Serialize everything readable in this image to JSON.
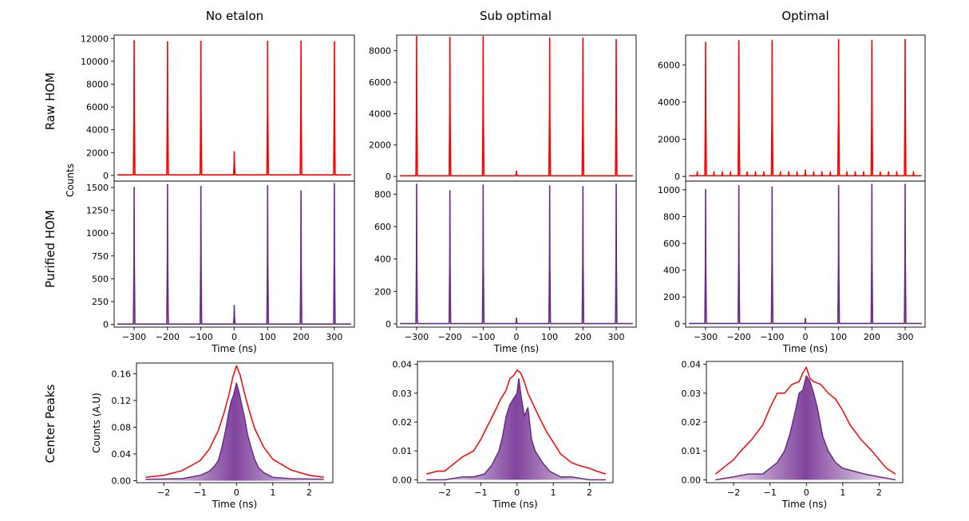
{
  "figure": {
    "column_titles": [
      "No etalon",
      "Sub optimal",
      "Optimal"
    ],
    "row_titles": [
      "Raw HOM",
      "Purified HOM",
      "Center Peaks"
    ],
    "shared_ylabel_top": "Counts",
    "ylabel_center": "Counts (A.U)",
    "xlabel": "Time (ns)"
  },
  "colors": {
    "raw": "#ff0000",
    "purified": "#6a2b86",
    "fill": "#8a4fa6",
    "axis": "#000000"
  },
  "chart_data": [
    {
      "id": "raw-no-etalon",
      "type": "line",
      "title": "No etalon",
      "row": "Raw HOM",
      "series_name": "raw",
      "color": "#ff0000",
      "xlim": [
        -360,
        360
      ],
      "ylim": [
        -500,
        12300
      ],
      "yticks": [
        0,
        2000,
        4000,
        6000,
        8000,
        10000,
        12000
      ],
      "yticklabels": [
        "0",
        "2000",
        "4000",
        "6000",
        "8000",
        "10000",
        "12000"
      ],
      "xticks": [],
      "baseline": 50,
      "sidepeaks": 0,
      "peak_width": 1.4,
      "peaks": [
        {
          "x": -300,
          "y": 11800
        },
        {
          "x": -200,
          "y": 11700
        },
        {
          "x": -100,
          "y": 11750
        },
        {
          "x": 0,
          "y": 2050
        },
        {
          "x": 100,
          "y": 11750
        },
        {
          "x": 200,
          "y": 11750
        },
        {
          "x": 300,
          "y": 11700
        }
      ]
    },
    {
      "id": "raw-sub-optimal",
      "type": "line",
      "title": "Sub optimal",
      "row": "Raw HOM",
      "series_name": "raw",
      "color": "#ff0000",
      "xlim": [
        -360,
        360
      ],
      "ylim": [
        -300,
        9000
      ],
      "yticks": [
        0,
        2000,
        4000,
        6000,
        8000
      ],
      "yticklabels": [
        "0",
        "2000",
        "4000",
        "6000",
        "8000"
      ],
      "xticks": [],
      "baseline": 40,
      "sidepeaks": 0,
      "peak_width": 1.4,
      "peaks": [
        {
          "x": -300,
          "y": 8900
        },
        {
          "x": -200,
          "y": 8850
        },
        {
          "x": -100,
          "y": 8900
        },
        {
          "x": 0,
          "y": 330
        },
        {
          "x": 100,
          "y": 8800
        },
        {
          "x": 200,
          "y": 8800
        },
        {
          "x": 300,
          "y": 8700
        }
      ]
    },
    {
      "id": "raw-optimal",
      "type": "line",
      "title": "Optimal",
      "row": "Raw HOM",
      "series_name": "raw",
      "color": "#ff0000",
      "xlim": [
        -360,
        360
      ],
      "ylim": [
        -250,
        7600
      ],
      "yticks": [
        0,
        2000,
        4000,
        6000
      ],
      "yticklabels": [
        "0",
        "2000",
        "4000",
        "6000"
      ],
      "xticks": [],
      "baseline": 40,
      "sidepeaks": 250,
      "peak_width": 1.4,
      "peaks": [
        {
          "x": -300,
          "y": 7200
        },
        {
          "x": -200,
          "y": 7300
        },
        {
          "x": -100,
          "y": 7300
        },
        {
          "x": 0,
          "y": 330
        },
        {
          "x": 100,
          "y": 7350
        },
        {
          "x": 200,
          "y": 7300
        },
        {
          "x": 300,
          "y": 7350
        }
      ]
    },
    {
      "id": "purified-no-etalon",
      "type": "line",
      "title": "No etalon",
      "row": "Purified HOM",
      "series_name": "purified",
      "color": "#6a2b86",
      "xlim": [
        -360,
        360
      ],
      "ylim": [
        -30,
        1570
      ],
      "yticks": [
        0,
        250,
        500,
        750,
        1000,
        1250,
        1500
      ],
      "yticklabels": [
        "0",
        "250",
        "500",
        "750",
        "1000",
        "1250",
        "1500"
      ],
      "xticks": [
        -300,
        -200,
        -100,
        0,
        100,
        200,
        300
      ],
      "xticklabels": [
        "−300",
        "−200",
        "−100",
        "0",
        "100",
        "200",
        "300"
      ],
      "xlabel": "Time (ns)",
      "baseline": 3,
      "sidepeaks": 0,
      "peak_width": 1.4,
      "peaks": [
        {
          "x": -300,
          "y": 1500
        },
        {
          "x": -200,
          "y": 1530
        },
        {
          "x": -100,
          "y": 1510
        },
        {
          "x": 0,
          "y": 205
        },
        {
          "x": 100,
          "y": 1520
        },
        {
          "x": 200,
          "y": 1460
        },
        {
          "x": 300,
          "y": 1540
        }
      ]
    },
    {
      "id": "purified-sub-optimal",
      "type": "line",
      "title": "Sub optimal",
      "row": "Purified HOM",
      "series_name": "purified",
      "color": "#6a2b86",
      "xlim": [
        -360,
        360
      ],
      "ylim": [
        -20,
        880
      ],
      "yticks": [
        0,
        200,
        400,
        600,
        800
      ],
      "yticklabels": [
        "0",
        "200",
        "400",
        "600",
        "800"
      ],
      "xticks": [
        -300,
        -200,
        -100,
        0,
        100,
        200,
        300
      ],
      "xticklabels": [
        "−300",
        "−200",
        "−100",
        "0",
        "100",
        "200",
        "300"
      ],
      "xlabel": "Time (ns)",
      "baseline": 2,
      "sidepeaks": 0,
      "peak_width": 1.4,
      "peaks": [
        {
          "x": -300,
          "y": 860
        },
        {
          "x": -200,
          "y": 820
        },
        {
          "x": -100,
          "y": 855
        },
        {
          "x": 0,
          "y": 35
        },
        {
          "x": 100,
          "y": 850
        },
        {
          "x": 200,
          "y": 845
        },
        {
          "x": 300,
          "y": 860
        }
      ]
    },
    {
      "id": "purified-optimal",
      "type": "line",
      "title": "Optimal",
      "row": "Purified HOM",
      "series_name": "purified",
      "color": "#6a2b86",
      "xlim": [
        -360,
        360
      ],
      "ylim": [
        -25,
        1065
      ],
      "yticks": [
        0,
        200,
        400,
        600,
        800,
        1000
      ],
      "yticklabels": [
        "0",
        "200",
        "400",
        "600",
        "800",
        "1000"
      ],
      "xticks": [
        -300,
        -200,
        -100,
        0,
        100,
        200,
        300
      ],
      "xticklabels": [
        "−300",
        "−200",
        "−100",
        "0",
        "100",
        "200",
        "300"
      ],
      "xlabel": "Time (ns)",
      "baseline": 2,
      "sidepeaks": 0,
      "peak_width": 1.4,
      "peaks": [
        {
          "x": -300,
          "y": 1000
        },
        {
          "x": -200,
          "y": 1030
        },
        {
          "x": -100,
          "y": 1020
        },
        {
          "x": 0,
          "y": 38
        },
        {
          "x": 100,
          "y": 1030
        },
        {
          "x": 200,
          "y": 1040
        },
        {
          "x": 300,
          "y": 1040
        }
      ]
    },
    {
      "id": "center-no-etalon",
      "type": "area",
      "title": "No etalon",
      "row": "Center Peaks",
      "xlim": [
        -2.75,
        2.65
      ],
      "ylim": [
        -0.003,
        0.176
      ],
      "yticks": [
        0.0,
        0.04,
        0.08,
        0.12,
        0.16
      ],
      "yticklabels": [
        "0.00",
        "0.04",
        "0.08",
        "0.12",
        "0.16"
      ],
      "xticks": [
        -2,
        -1,
        0,
        1,
        2
      ],
      "xticklabels": [
        "−2",
        "−1",
        "0",
        "1",
        "2"
      ],
      "xlabel": "Time (ns)",
      "ylabel": "Counts (A.U)",
      "series": [
        {
          "name": "raw",
          "color": "#ff0000",
          "fill": false,
          "x": [
            -2.5,
            -2.0,
            -1.5,
            -1.0,
            -0.75,
            -0.5,
            -0.35,
            -0.2,
            -0.1,
            0.0,
            0.1,
            0.2,
            0.35,
            0.5,
            0.75,
            1.0,
            1.5,
            2.0,
            2.4
          ],
          "y": [
            0.005,
            0.008,
            0.015,
            0.03,
            0.047,
            0.075,
            0.1,
            0.13,
            0.155,
            0.172,
            0.158,
            0.135,
            0.105,
            0.078,
            0.05,
            0.032,
            0.016,
            0.008,
            0.005
          ]
        },
        {
          "name": "purified",
          "color": "#6a2b86",
          "fill": true,
          "x": [
            -2.5,
            -1.5,
            -1.0,
            -0.75,
            -0.6,
            -0.5,
            -0.4,
            -0.3,
            -0.22,
            -0.15,
            -0.08,
            0.0,
            0.08,
            0.15,
            0.22,
            0.3,
            0.4,
            0.5,
            0.6,
            0.75,
            1.0,
            1.5,
            2.4
          ],
          "y": [
            0.002,
            0.003,
            0.008,
            0.014,
            0.022,
            0.03,
            0.05,
            0.075,
            0.1,
            0.118,
            0.128,
            0.146,
            0.13,
            0.112,
            0.095,
            0.07,
            0.05,
            0.032,
            0.02,
            0.012,
            0.005,
            0.003,
            0.002
          ]
        }
      ]
    },
    {
      "id": "center-sub-optimal",
      "type": "area",
      "title": "Sub optimal",
      "row": "Center Peaks",
      "xlim": [
        -2.75,
        2.65
      ],
      "ylim": [
        -0.001,
        0.041
      ],
      "yticks": [
        0.0,
        0.01,
        0.02,
        0.03,
        0.04
      ],
      "yticklabels": [
        "0.00",
        "0.01",
        "0.02",
        "0.03",
        "0.04"
      ],
      "xticks": [
        -2,
        -1,
        0,
        1,
        2
      ],
      "xticklabels": [
        "−2",
        "−1",
        "0",
        "1",
        "2"
      ],
      "xlabel": "Time (ns)",
      "series": [
        {
          "name": "raw",
          "color": "#ff0000",
          "fill": false,
          "x": [
            -2.5,
            -2.2,
            -2.0,
            -1.7,
            -1.5,
            -1.2,
            -1.0,
            -0.8,
            -0.6,
            -0.45,
            -0.3,
            -0.2,
            -0.1,
            0.0,
            0.1,
            0.2,
            0.3,
            0.45,
            0.6,
            0.8,
            1.0,
            1.2,
            1.5,
            1.7,
            2.0,
            2.2,
            2.45
          ],
          "y": [
            0.002,
            0.003,
            0.003,
            0.006,
            0.008,
            0.01,
            0.014,
            0.019,
            0.024,
            0.028,
            0.031,
            0.035,
            0.036,
            0.038,
            0.037,
            0.034,
            0.03,
            0.026,
            0.022,
            0.017,
            0.013,
            0.009,
            0.006,
            0.005,
            0.004,
            0.003,
            0.002
          ]
        },
        {
          "name": "purified",
          "color": "#6a2b86",
          "fill": true,
          "x": [
            -2.5,
            -2.0,
            -1.5,
            -1.2,
            -0.9,
            -0.7,
            -0.5,
            -0.4,
            -0.3,
            -0.2,
            -0.1,
            0.0,
            0.05,
            0.1,
            0.2,
            0.3,
            0.4,
            0.5,
            0.7,
            0.9,
            1.2,
            1.5,
            2.0,
            2.45
          ],
          "y": [
            0.0,
            0.0,
            0.001,
            0.001,
            0.002,
            0.005,
            0.01,
            0.015,
            0.022,
            0.026,
            0.028,
            0.03,
            0.035,
            0.03,
            0.022,
            0.025,
            0.014,
            0.01,
            0.006,
            0.003,
            0.001,
            0.001,
            0.0,
            0.0
          ]
        }
      ]
    },
    {
      "id": "center-optimal",
      "type": "area",
      "title": "Optimal",
      "row": "Center Peaks",
      "xlim": [
        -2.75,
        2.65
      ],
      "ylim": [
        -0.001,
        0.041
      ],
      "yticks": [
        0.0,
        0.01,
        0.02,
        0.03,
        0.04
      ],
      "yticklabels": [
        "0.00",
        "0.01",
        "0.02",
        "0.03",
        "0.04"
      ],
      "xticks": [
        -2,
        -1,
        0,
        1,
        2
      ],
      "xticklabels": [
        "−2",
        "−1",
        "0",
        "1",
        "2"
      ],
      "xlabel": "Time (ns)",
      "series": [
        {
          "name": "raw",
          "color": "#ff0000",
          "fill": false,
          "x": [
            -2.5,
            -2.2,
            -2.0,
            -1.8,
            -1.5,
            -1.2,
            -1.0,
            -0.8,
            -0.6,
            -0.4,
            -0.2,
            -0.1,
            0.0,
            0.1,
            0.2,
            0.4,
            0.6,
            0.8,
            1.0,
            1.2,
            1.5,
            1.8,
            2.0,
            2.2,
            2.45
          ],
          "y": [
            0.002,
            0.005,
            0.007,
            0.01,
            0.014,
            0.019,
            0.025,
            0.03,
            0.03,
            0.033,
            0.034,
            0.037,
            0.039,
            0.035,
            0.034,
            0.033,
            0.03,
            0.028,
            0.024,
            0.019,
            0.014,
            0.01,
            0.007,
            0.004,
            0.002
          ]
        },
        {
          "name": "purified",
          "color": "#6a2b86",
          "fill": true,
          "x": [
            -2.5,
            -2.0,
            -1.6,
            -1.2,
            -1.0,
            -0.8,
            -0.6,
            -0.45,
            -0.3,
            -0.2,
            -0.1,
            0.0,
            0.1,
            0.2,
            0.3,
            0.45,
            0.6,
            0.8,
            1.0,
            1.3,
            1.6,
            2.0,
            2.45
          ],
          "y": [
            0.0,
            0.001,
            0.002,
            0.002,
            0.004,
            0.006,
            0.01,
            0.016,
            0.024,
            0.03,
            0.031,
            0.036,
            0.034,
            0.03,
            0.025,
            0.015,
            0.01,
            0.006,
            0.004,
            0.003,
            0.002,
            0.001,
            0.0
          ]
        }
      ]
    }
  ]
}
